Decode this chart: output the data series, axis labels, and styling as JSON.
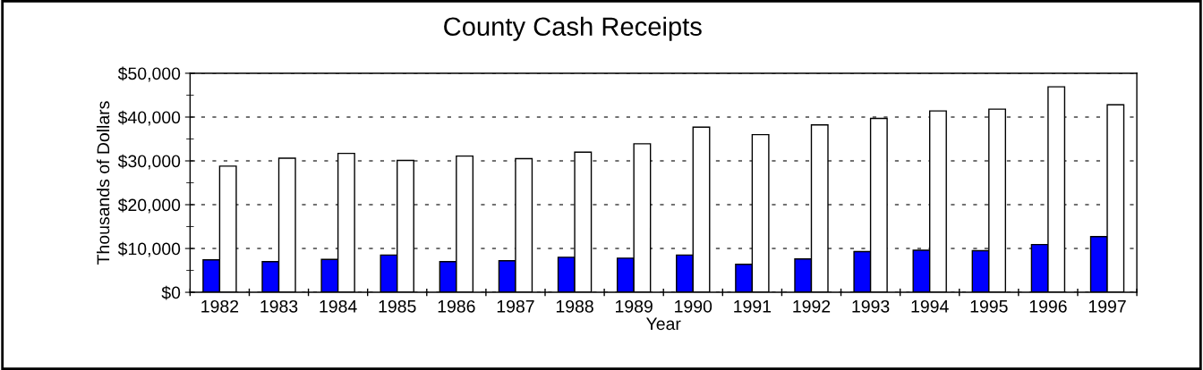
{
  "chart_data": {
    "type": "bar",
    "title": "County Cash Receipts",
    "xlabel": "Year",
    "ylabel": "Thousands of Dollars",
    "categories": [
      "1982",
      "1983",
      "1984",
      "1985",
      "1986",
      "1987",
      "1988",
      "1989",
      "1990",
      "1991",
      "1992",
      "1993",
      "1994",
      "1995",
      "1996",
      "1997"
    ],
    "series": [
      {
        "color": "#0000ff",
        "values": [
          7400,
          7000,
          7500,
          8500,
          7000,
          7200,
          8000,
          7800,
          8500,
          6400,
          7600,
          9300,
          9600,
          9500,
          10900,
          12700
        ]
      },
      {
        "color": "#ffffff",
        "values": [
          28800,
          30600,
          31700,
          30100,
          31100,
          30500,
          32000,
          33900,
          37700,
          36000,
          38200,
          39700,
          41400,
          41800,
          46900,
          42800
        ]
      }
    ],
    "ylim": [
      0,
      50000
    ],
    "yticks": [
      {
        "value": 0,
        "label": "$0"
      },
      {
        "value": 10000,
        "label": "$10,000"
      },
      {
        "value": 20000,
        "label": "$20,000"
      },
      {
        "value": 30000,
        "label": "$30,000"
      },
      {
        "value": 40000,
        "label": "$40,000"
      },
      {
        "value": 50000,
        "label": "$50,000"
      }
    ],
    "grid": "y",
    "legend": false
  }
}
